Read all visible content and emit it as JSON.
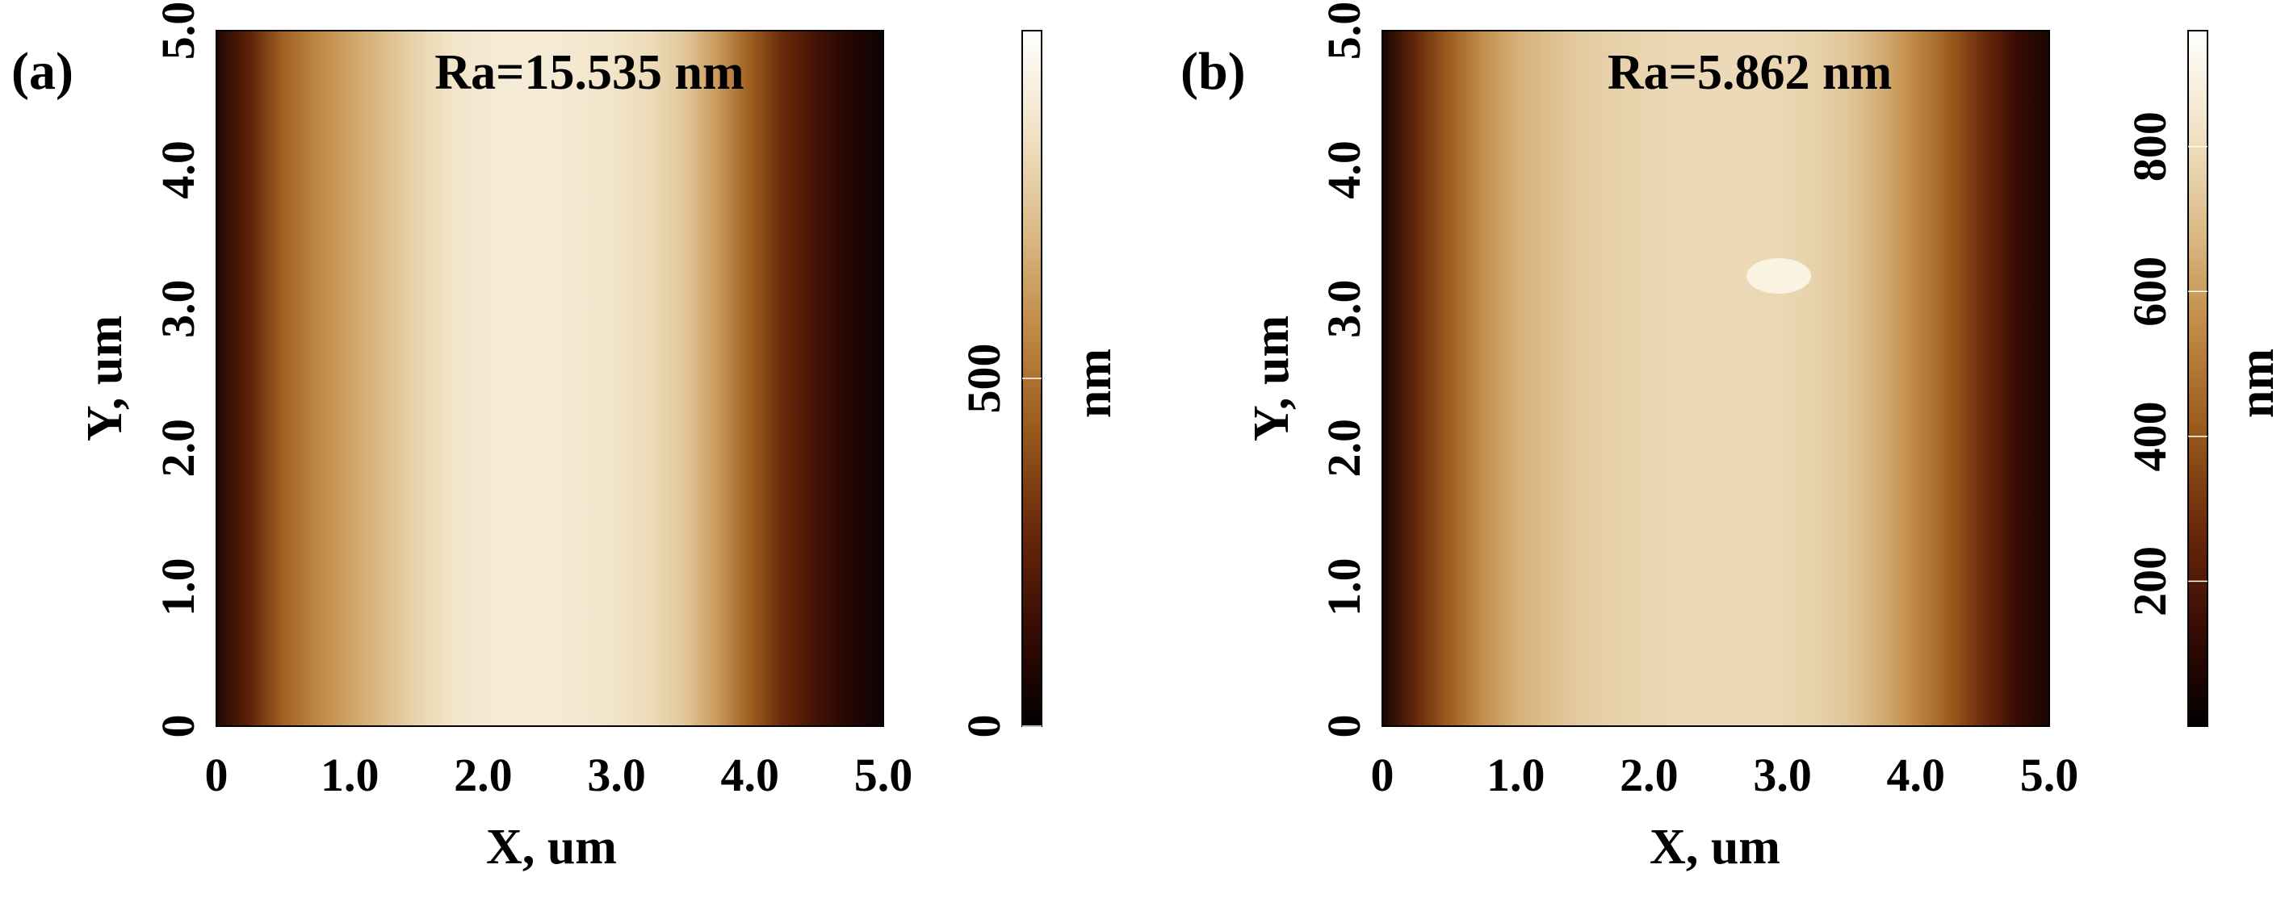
{
  "chart_data": [
    {
      "type": "heatmap",
      "panel_label": "(a)",
      "annotation": "Ra=15.535 nm",
      "xlabel": "X, um",
      "ylabel": "Y, um",
      "xlim": [
        0,
        5.0
      ],
      "ylim": [
        0,
        5.0
      ],
      "xticks": [
        "0",
        "1.0",
        "2.0",
        "3.0",
        "4.0",
        "5.0"
      ],
      "yticks": [
        "0",
        "1.0",
        "2.0",
        "3.0",
        "4.0",
        "5.0"
      ],
      "colorbar": {
        "label": "nm",
        "ticks": [
          "0",
          "500"
        ],
        "tick_values": [
          0,
          500
        ],
        "range": [
          0,
          1000
        ]
      },
      "height_profile_x": [
        0,
        0.25,
        0.5,
        0.75,
        1.0,
        1.25,
        1.5,
        1.75,
        2.0,
        2.25,
        2.5,
        2.75,
        3.0,
        3.25,
        3.5,
        3.75,
        4.0,
        4.25,
        4.5,
        4.75,
        5.0
      ],
      "height_profile_nm": [
        80,
        250,
        450,
        560,
        640,
        720,
        800,
        860,
        890,
        900,
        900,
        880,
        860,
        830,
        760,
        620,
        440,
        280,
        170,
        90,
        30
      ]
    },
    {
      "type": "heatmap",
      "panel_label": "(b)",
      "annotation": "Ra=5.862 nm",
      "xlabel": "X, um",
      "ylabel": "Y, um",
      "xlim": [
        0,
        5.0
      ],
      "ylim": [
        0,
        5.0
      ],
      "xticks": [
        "0",
        "1.0",
        "2.0",
        "3.0",
        "4.0",
        "5.0"
      ],
      "yticks": [
        "0",
        "1.0",
        "2.0",
        "3.0",
        "4.0",
        "5.0"
      ],
      "colorbar": {
        "label": "nm",
        "ticks": [
          "200",
          "400",
          "600",
          "800"
        ],
        "tick_values": [
          200,
          400,
          600,
          800
        ],
        "range": [
          0,
          960
        ]
      },
      "height_profile_x": [
        0,
        0.25,
        0.5,
        0.75,
        1.0,
        1.25,
        1.5,
        1.75,
        2.0,
        2.25,
        2.5,
        2.75,
        3.0,
        3.25,
        3.5,
        3.75,
        4.0,
        4.25,
        4.5,
        4.75,
        5.0
      ],
      "height_profile_nm": [
        60,
        260,
        420,
        560,
        650,
        700,
        740,
        760,
        775,
        785,
        790,
        790,
        780,
        760,
        720,
        640,
        540,
        420,
        280,
        140,
        60
      ]
    }
  ],
  "colors": {
    "colormap": [
      "#000000",
      "#3a0b04",
      "#6b2a0a",
      "#9a5a1c",
      "#c08a45",
      "#dcbb88",
      "#f1e3c6",
      "#ffffff"
    ]
  }
}
